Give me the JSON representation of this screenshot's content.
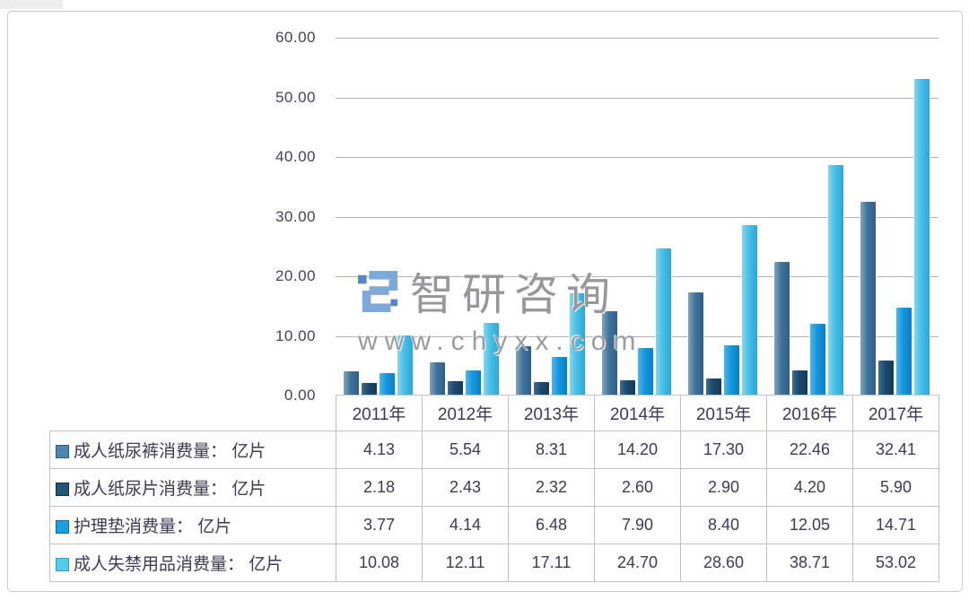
{
  "watermark": {
    "brand_text": "智研咨询",
    "url_text": "www.chyxx.com",
    "logo_color": "#7ca8da",
    "logo_color_dark": "#5586c6"
  },
  "chart_data": {
    "type": "bar",
    "title": "",
    "xlabel": "",
    "ylabel": "",
    "grid": true,
    "legend_position": "table-left",
    "ylim": [
      0,
      60
    ],
    "ytick_labels": [
      "60.00",
      "50.00",
      "40.00",
      "30.00",
      "20.00",
      "10.00",
      "0.00"
    ],
    "categories": [
      "2011年",
      "2012年",
      "2013年",
      "2014年",
      "2015年",
      "2016年",
      "2017年"
    ],
    "series": [
      {
        "name": "成人纸尿裤消费量： 亿片",
        "color": "#41739b",
        "color_light": "#7fa6bf",
        "color_dark": "#2f6089",
        "swatch": "#4d87ae",
        "swatch_border": "#2b5b7f",
        "values": [
          4.13,
          5.54,
          8.31,
          14.2,
          17.3,
          22.46,
          32.41
        ]
      },
      {
        "name": "成人纸尿片消费量： 亿片",
        "color": "#1b4a6e",
        "color_light": "#3a6e92",
        "color_dark": "#113a58",
        "swatch": "#235577",
        "swatch_border": "#132f47",
        "values": [
          2.18,
          2.43,
          2.32,
          2.6,
          2.9,
          4.2,
          5.9
        ]
      },
      {
        "name": "护理垫消费量： 亿片",
        "color": "#1397df",
        "color_light": "#4fb5ec",
        "color_dark": "#0b7ec4",
        "swatch": "#19a0e4",
        "swatch_border": "#0e6ca5",
        "values": [
          3.77,
          4.14,
          6.48,
          7.9,
          8.4,
          12.05,
          14.71
        ]
      },
      {
        "name": "成人失禁用品消费量： 亿片",
        "color": "#48bfe6",
        "color_light": "#82d8f2",
        "color_dark": "#2ba8d8",
        "swatch": "#54cbeb",
        "swatch_border": "#2e9dc2",
        "values": [
          10.08,
          12.11,
          17.11,
          24.7,
          28.6,
          38.71,
          53.02
        ]
      }
    ]
  }
}
